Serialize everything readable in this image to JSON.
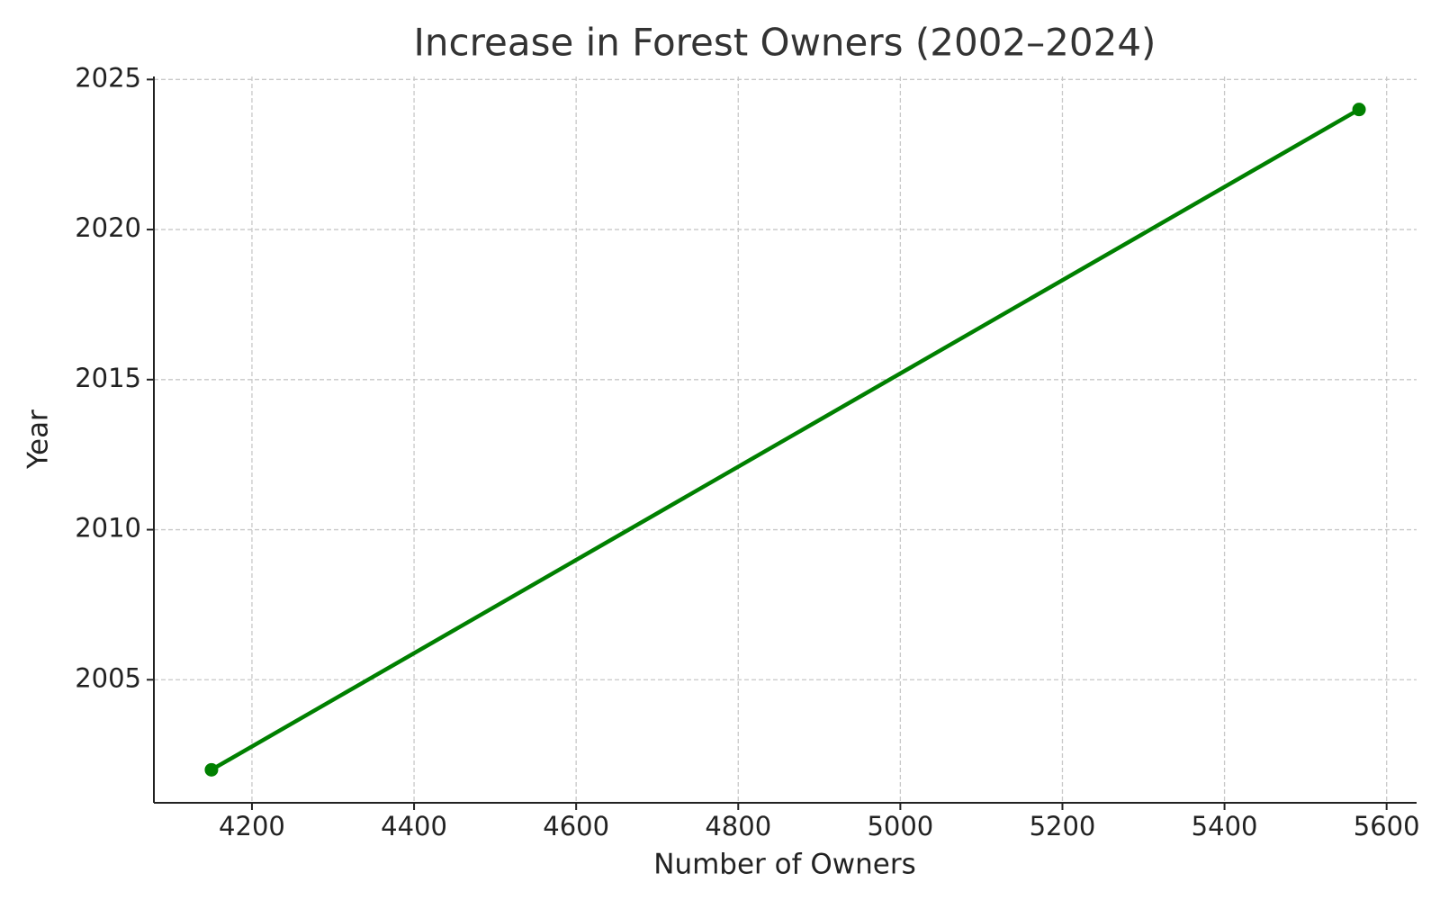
{
  "chart_data": {
    "type": "line",
    "title": "Increase in Forest Owners (2002–2024)",
    "x_label": "Number of Owners",
    "y_label": "Year",
    "x": [
      4150,
      5566
    ],
    "values": [
      2002,
      2024
    ],
    "color": "green",
    "xlim": [
      4079,
      5637
    ],
    "ylim": [
      2000.9,
      2025.1
    ],
    "xticks": [
      4200,
      4400,
      4600,
      4800,
      5000,
      5200,
      5400,
      5600
    ],
    "yticks": [
      2005,
      2010,
      2015,
      2020,
      2025
    ],
    "grid": true
  }
}
